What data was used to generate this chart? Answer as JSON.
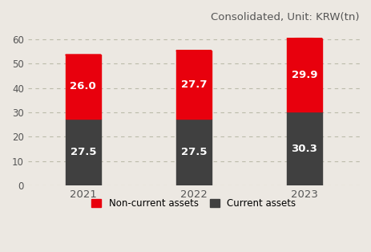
{
  "years": [
    "2021",
    "2022",
    "2023"
  ],
  "non_current": [
    26.0,
    27.7,
    29.9
  ],
  "current": [
    27.5,
    27.5,
    30.3
  ],
  "non_current_color": "#e8000d",
  "current_color": "#404040",
  "background_color": "#ece8e2",
  "title": "Consolidated, Unit: KRW(tn)",
  "title_fontsize": 9.5,
  "ylabel_ticks": [
    0,
    10,
    20,
    30,
    40,
    50,
    60
  ],
  "ylim": [
    0,
    65
  ],
  "bar_width": 0.32,
  "label_fontsize": 9.5,
  "legend_labels": [
    "Non-current assets",
    "Current assets"
  ],
  "grid_color": "#bbbbaa",
  "text_color": "#555555"
}
